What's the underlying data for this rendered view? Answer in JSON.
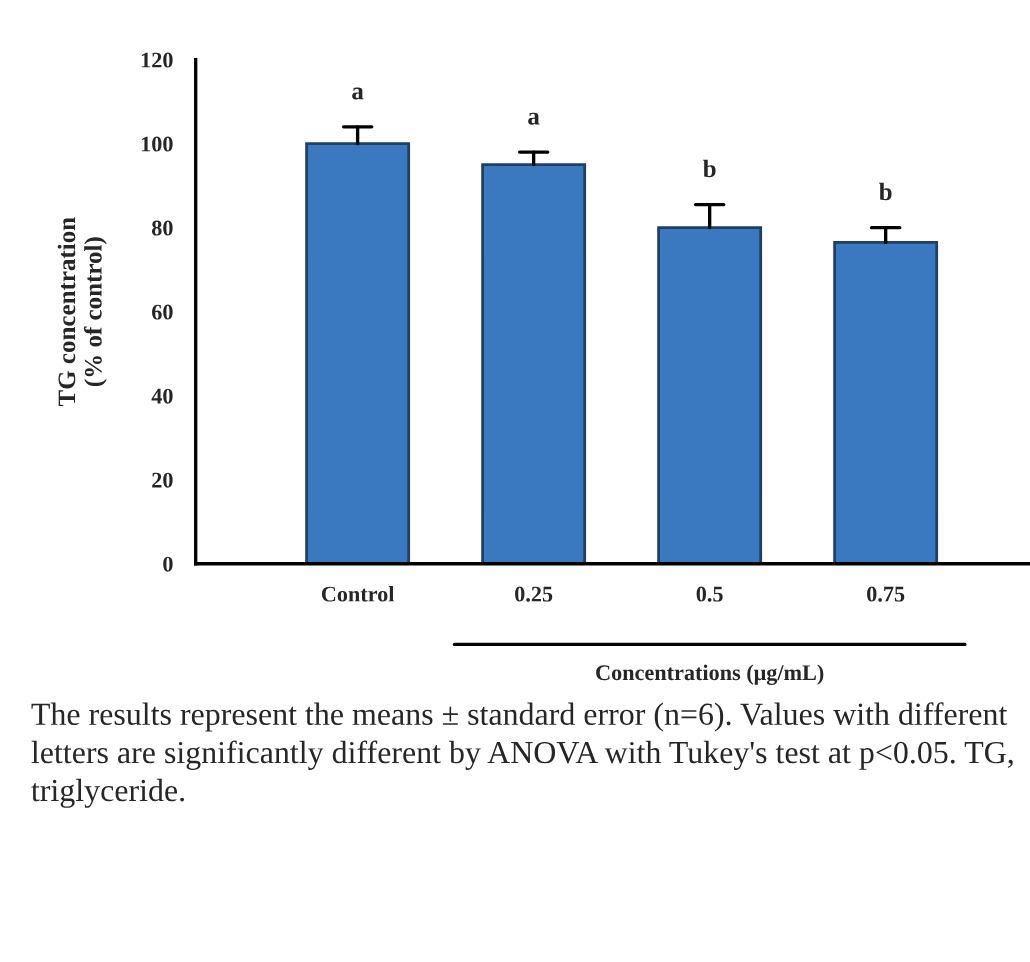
{
  "chart_data": {
    "type": "bar",
    "ylabel": "TG concentration\n(% of control)",
    "xlabel": "Concentrations (μg/mL)",
    "categories": [
      "Control",
      "0.25",
      "0.5",
      "0.75"
    ],
    "values": [
      100,
      95,
      80,
      76.5
    ],
    "errors": [
      [
        100,
        104
      ],
      [
        95,
        98
      ],
      [
        80,
        85.5
      ],
      [
        76.5,
        80
      ]
    ],
    "color": "#3a78c0",
    "ylim": [
      0,
      120
    ],
    "yticks": [
      0,
      20,
      40,
      60,
      80,
      100,
      120
    ],
    "grid": false,
    "legend": false,
    "annotations": [
      "a",
      "a",
      "b",
      "b",
      "The results represent the means ± standard error (n=6). Values with different letters are significantly different by ANOVA with Tukey's test at p<0.05. TG, triglyceride."
    ]
  }
}
